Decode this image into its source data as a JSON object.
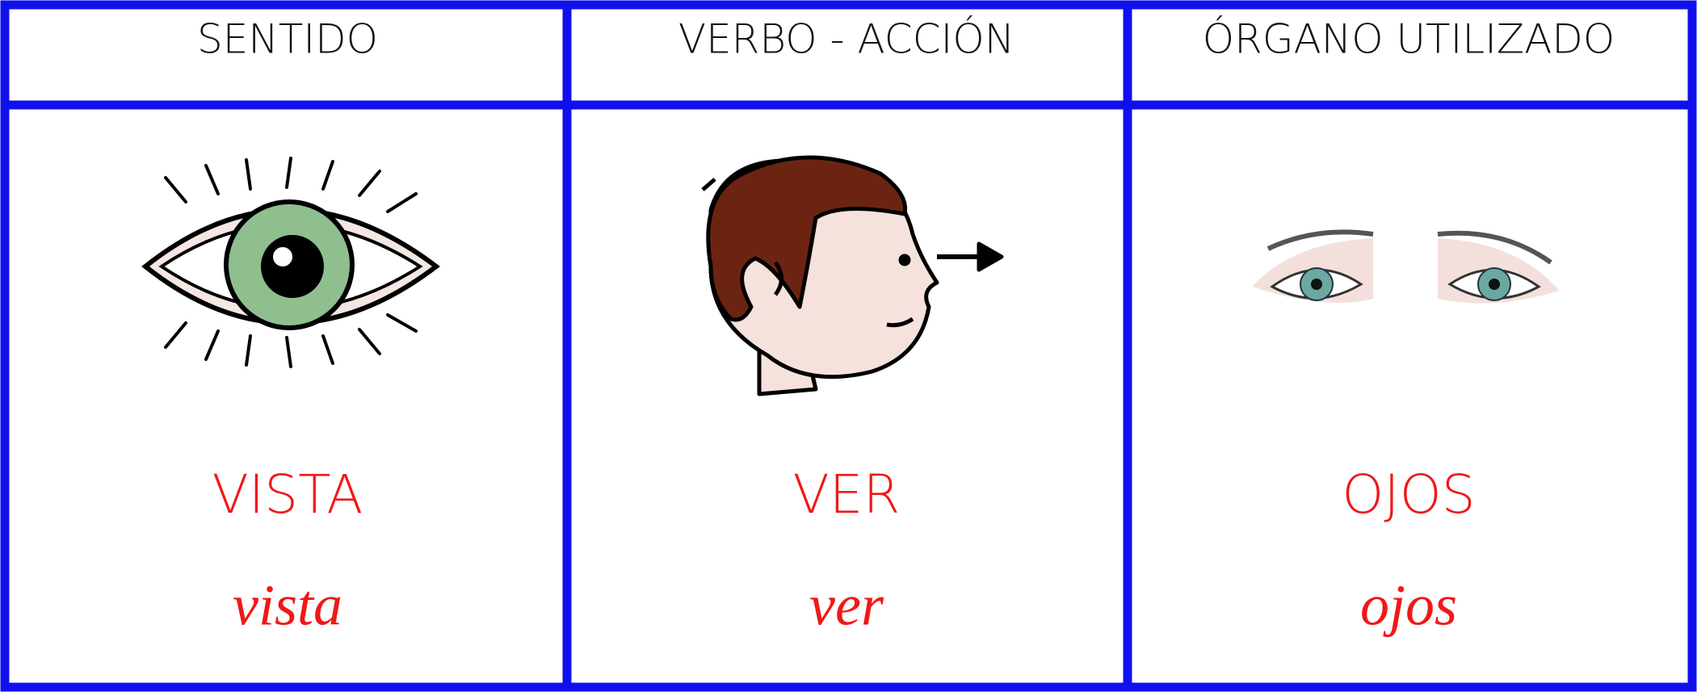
{
  "table": {
    "headers": [
      "SENTIDO",
      "VERBO - ACCIÓN",
      "ÓRGANO UTILIZADO"
    ],
    "cells": [
      {
        "upper": "VISTA",
        "lower": "vista"
      },
      {
        "upper": "VER",
        "lower": "ver"
      },
      {
        "upper": "OJOS",
        "lower": "ojos"
      }
    ]
  }
}
